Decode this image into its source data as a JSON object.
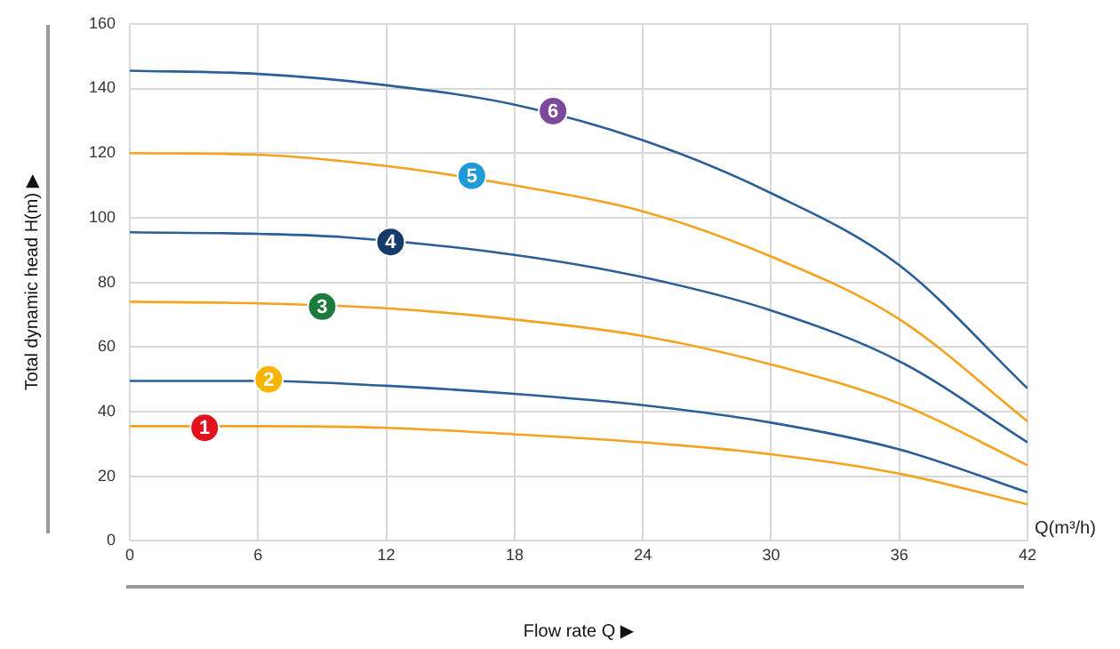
{
  "chart_data": {
    "type": "line",
    "xlabel": "Flow rate Q ▶",
    "ylabel": "Total dynamic head H(m) ▶",
    "x": [
      0,
      6,
      12,
      18,
      24,
      30,
      36,
      42
    ],
    "xlim": [
      0,
      42
    ],
    "xticks": [
      0,
      6,
      12,
      18,
      24,
      30,
      36,
      42
    ],
    "ylim": [
      0,
      160
    ],
    "yticks": [
      0,
      20,
      40,
      60,
      80,
      100,
      120,
      140,
      160
    ],
    "grid": true,
    "legend": false,
    "marker": "none",
    "line_style": "solid",
    "series": [
      {
        "color": "#f5a31f",
        "values": [
          35.5,
          35.5,
          35,
          33,
          30.5,
          26.8,
          20.8,
          11.3
        ]
      },
      {
        "color": "#2b5f97",
        "values": [
          49.5,
          49.5,
          48,
          45.5,
          42,
          36.6,
          28.3,
          15
        ]
      },
      {
        "color": "#f5a31f",
        "values": [
          74,
          73.5,
          72,
          68.5,
          63.4,
          54.6,
          42.5,
          23.4
        ]
      },
      {
        "color": "#2b5f97",
        "x": [
          0,
          6,
          10,
          18,
          24,
          30,
          36,
          42
        ],
        "values": [
          95.5,
          95,
          94,
          88.5,
          81.6,
          71.3,
          55.6,
          30.5
        ]
      },
      {
        "color": "#f5a31f",
        "values": [
          120,
          119.5,
          116,
          110,
          102,
          88,
          68.6,
          37
        ]
      },
      {
        "color": "#2b5f97",
        "values": [
          145.5,
          144.5,
          141,
          135,
          124,
          107.6,
          85.3,
          47.2
        ]
      }
    ],
    "annotations": [
      {
        "text": "1",
        "x": 3.5,
        "y": 35
      },
      {
        "text": "2",
        "x": 6.5,
        "y": 50
      },
      {
        "text": "3",
        "x": 9,
        "y": 72.5
      },
      {
        "text": "4",
        "x": 12.2,
        "y": 92.5
      },
      {
        "text": "5",
        "x": 16,
        "y": 113
      },
      {
        "text": "6",
        "x": 19.8,
        "y": 133
      },
      "Q(m³/h)"
    ]
  }
}
